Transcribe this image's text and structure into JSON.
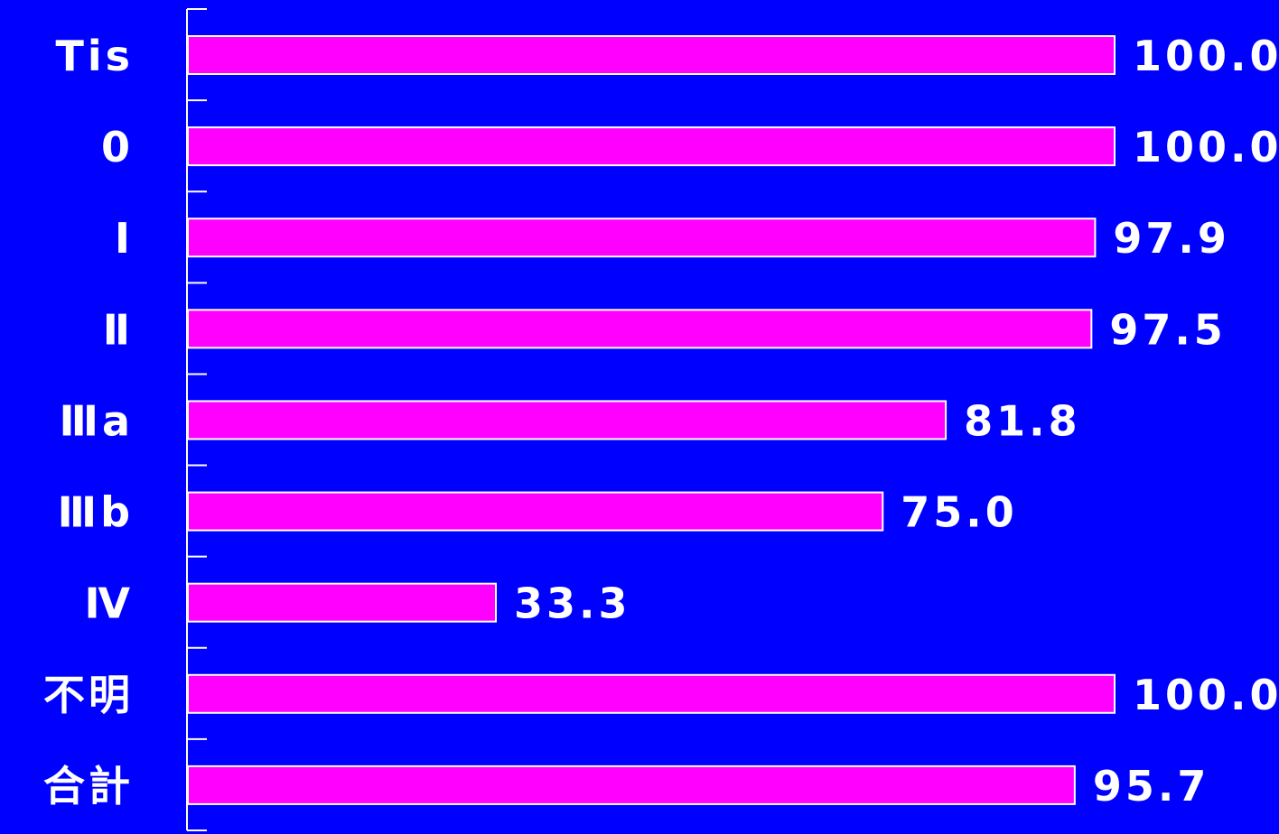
{
  "chart_data": {
    "type": "bar",
    "orientation": "horizontal",
    "categories": [
      "Tis",
      "0",
      "Ⅰ",
      "Ⅱ",
      "Ⅲa",
      "Ⅲb",
      "Ⅳ",
      "不明",
      "合計"
    ],
    "values": [
      100.0,
      100.0,
      97.9,
      97.5,
      81.8,
      75.0,
      33.3,
      100.0,
      95.7
    ],
    "value_labels": [
      "100.0",
      "100.0",
      "97.9",
      "97.5",
      "81.8",
      "75.0",
      "33.3",
      "100.0",
      "95.7"
    ],
    "title": "",
    "xlabel": "",
    "ylabel": "",
    "xlim": [
      0,
      100
    ],
    "grid": false,
    "legend": "none"
  },
  "colors": {
    "background": "#0000ff",
    "bar_fill": "#ff00ff",
    "bar_stroke": "#ffffff",
    "axis": "#ffffff",
    "text": "#ffffff"
  }
}
